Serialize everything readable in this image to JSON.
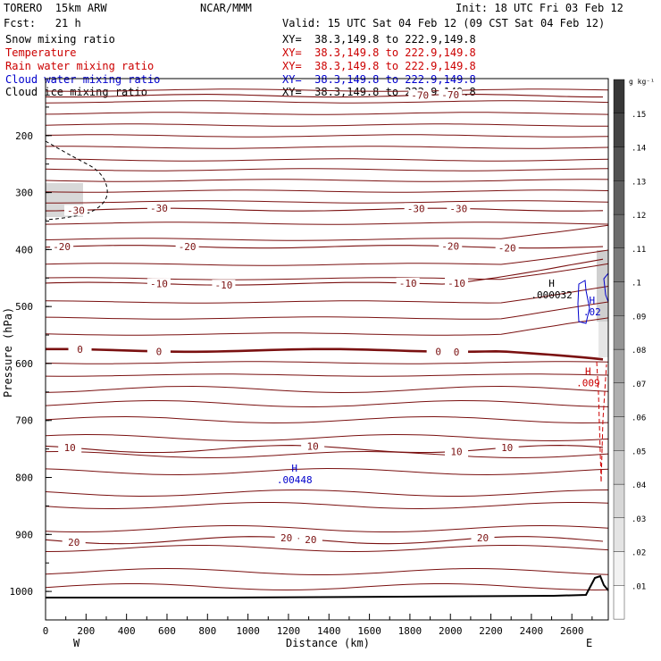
{
  "header": {
    "model": "TORERO  15km ARW",
    "center": "NCAR/MMM",
    "init": "Init: 18 UTC Fri 03 Feb 12",
    "fcst": "Fcst:   21 h",
    "valid": "Valid: 15 UTC Sat 04 Feb 12 (09 CST Sat 04 Feb 12)",
    "fields": [
      {
        "label": "Snow mixing ratio",
        "xy": "XY=  38.3,149.8 to 222.9,149.8",
        "color": "#000000"
      },
      {
        "label": "Temperature",
        "xy": "XY=  38.3,149.8 to 222.9,149.8",
        "color": "#cc0000"
      },
      {
        "label": "Rain water mixing ratio",
        "xy": "XY=  38.3,149.8 to 222.9,149.8",
        "color": "#cc0000"
      },
      {
        "label": "Cloud water mixing ratio",
        "xy": "XY=  38.3,149.8 to 222.9,149.8",
        "color": "#0000cc"
      },
      {
        "label": "Cloud ice mixing ratio",
        "xy": "XY=  38.3,149.8 to 222.9,149.8",
        "color": "#000000"
      }
    ]
  },
  "chart_data": {
    "type": "contour_cross_section",
    "xlabel": "Distance (km)",
    "ylabel": "Pressure (hPa)",
    "xlim": [
      0,
      2780
    ],
    "ylim": [
      1050,
      100
    ],
    "x_ticks": [
      0,
      200,
      400,
      600,
      800,
      1000,
      1200,
      1400,
      1600,
      1800,
      2000,
      2200,
      2400,
      2600
    ],
    "y_ticks": [
      200,
      300,
      400,
      500,
      600,
      700,
      800,
      900,
      1000
    ],
    "direction_labels": {
      "left": "W",
      "right": "E"
    },
    "colorbar": {
      "unit": "g kg⁻¹",
      "levels": [
        ".01",
        ".02",
        ".03",
        ".04",
        ".05",
        ".06",
        ".07",
        ".08",
        ".09",
        ".1",
        ".11",
        ".12",
        ".13",
        ".14",
        ".15"
      ]
    },
    "temperature_contours": [
      {
        "level": -70,
        "pressure": 130,
        "labels": [
          {
            "text": "-70",
            "x": 1850
          },
          {
            "text": "-70",
            "x": 2000
          }
        ]
      },
      {
        "level": -30,
        "pressure": 330,
        "labels": [
          {
            "text": "-30",
            "x": 150
          },
          {
            "text": "-30",
            "x": 560
          },
          {
            "text": "-30",
            "x": 1830
          },
          {
            "text": "-30",
            "x": 2040
          }
        ]
      },
      {
        "level": -20,
        "pressure": 395,
        "labels": [
          {
            "text": "-20",
            "x": 80
          },
          {
            "text": "-20",
            "x": 700
          },
          {
            "text": "-20",
            "x": 2000
          },
          {
            "text": "-20",
            "x": 2280
          }
        ]
      },
      {
        "level": -10,
        "pressure": 460,
        "labels": [
          {
            "text": "-10",
            "x": 560
          },
          {
            "text": "-10",
            "x": 880
          },
          {
            "text": "-10",
            "x": 1790
          },
          {
            "text": "-10",
            "x": 2030
          }
        ]
      },
      {
        "level": 0,
        "pressure": 577,
        "labels": [
          {
            "text": "0",
            "x": 170
          },
          {
            "text": "0",
            "x": 560
          },
          {
            "text": "0",
            "x": 1940
          },
          {
            "text": "0",
            "x": 2030
          }
        ]
      },
      {
        "level": 10,
        "pressure": 750,
        "labels": [
          {
            "text": "10",
            "x": 120
          },
          {
            "text": "10",
            "x": 1320
          },
          {
            "text": "10",
            "x": 2030
          },
          {
            "text": "10",
            "x": 2280
          }
        ]
      },
      {
        "level": 20,
        "pressure": 910,
        "labels": [
          {
            "text": "20",
            "x": 140
          },
          {
            "text": "20",
            "x": 1190
          },
          {
            "text": "20",
            "x": 1310
          },
          {
            "text": "20",
            "x": 2160
          }
        ]
      }
    ],
    "maxima": [
      {
        "symbol": "H",
        "value": ".000032",
        "x": 2500,
        "pressure": 465,
        "color": "#000000"
      },
      {
        "symbol": "H",
        "value": ".02",
        "x": 2700,
        "pressure": 495,
        "color": "#0000cc"
      },
      {
        "symbol": "H",
        "value": ".009",
        "x": 2680,
        "pressure": 620,
        "color": "#cc0000"
      },
      {
        "symbol": "H",
        "value": ".00448",
        "x": 1230,
        "pressure": 790,
        "color": "#0000cc"
      }
    ]
  }
}
